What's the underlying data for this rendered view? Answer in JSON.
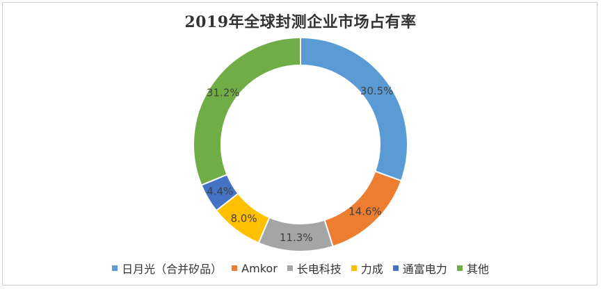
{
  "chart_data": {
    "type": "pie",
    "donut": true,
    "title": "2019年全球封测企业市场占有率",
    "legend_position": "bottom",
    "series": [
      {
        "name": "日月光（合并矽品）",
        "value": 30.5,
        "label": "30.5%",
        "color": "#5b9bd5"
      },
      {
        "name": "Amkor",
        "value": 14.6,
        "label": "14.6%",
        "color": "#ed7d31"
      },
      {
        "name": "长电科技",
        "value": 11.3,
        "label": "11.3%",
        "color": "#a5a5a5"
      },
      {
        "name": "力成",
        "value": 8.0,
        "label": "8.0%",
        "color": "#ffc000"
      },
      {
        "name": "通富电力",
        "value": 4.4,
        "label": "4.4%",
        "color": "#4472c4"
      },
      {
        "name": "其他",
        "value": 31.2,
        "label": "31.2%",
        "color": "#70ad47"
      }
    ]
  }
}
